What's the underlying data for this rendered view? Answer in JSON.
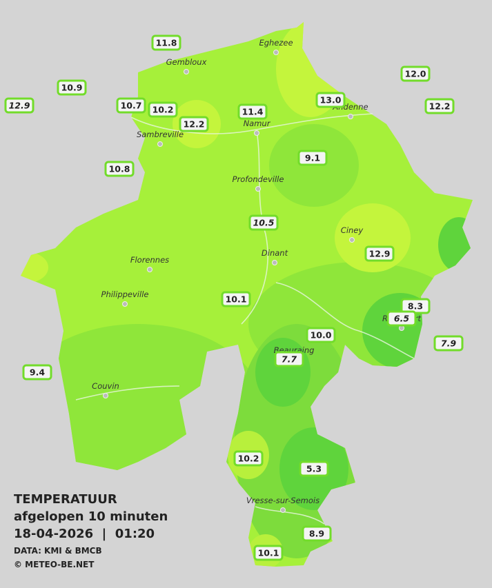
{
  "title": {
    "heading": "TEMPERATUUR",
    "period": "afgelopen 10 minuten",
    "timestamp": "18-04-2026  |  01:20",
    "source": "DATA: KMI & BMCB",
    "copyright": "© METEO-BE.NET"
  },
  "cities": [
    "Eghezee",
    "Gembloux",
    "Andenne",
    "Namur",
    "Sambreville",
    "Profondeville",
    "Ciney",
    "Dinant",
    "Florennes",
    "Philippeville",
    "Beauraing",
    "Rochefort",
    "Couvin",
    "Vresse-sur-Semois"
  ],
  "stations": [
    {
      "value": "11.8",
      "italic": false
    },
    {
      "value": "10.9",
      "italic": false
    },
    {
      "value": "12.9",
      "italic": true
    },
    {
      "value": "10.7",
      "italic": false
    },
    {
      "value": "10.2",
      "italic": false
    },
    {
      "value": "12.2",
      "italic": false
    },
    {
      "value": "11.4",
      "italic": false
    },
    {
      "value": "13.0",
      "italic": false
    },
    {
      "value": "12.0",
      "italic": false
    },
    {
      "value": "12.2",
      "italic": false
    },
    {
      "value": "10.8",
      "italic": false
    },
    {
      "value": "9.1",
      "italic": false
    },
    {
      "value": "10.5",
      "italic": true
    },
    {
      "value": "12.9",
      "italic": false
    },
    {
      "value": "10.1",
      "italic": false
    },
    {
      "value": "8.3",
      "italic": false
    },
    {
      "value": "6.5",
      "italic": true
    },
    {
      "value": "7.9",
      "italic": true
    },
    {
      "value": "10.0",
      "italic": false
    },
    {
      "value": "7.7",
      "italic": true
    },
    {
      "value": "9.4",
      "italic": false
    },
    {
      "value": "10.2",
      "italic": false
    },
    {
      "value": "5.3",
      "italic": false
    },
    {
      "value": "8.9",
      "italic": false
    },
    {
      "value": "10.1",
      "italic": false
    }
  ]
}
